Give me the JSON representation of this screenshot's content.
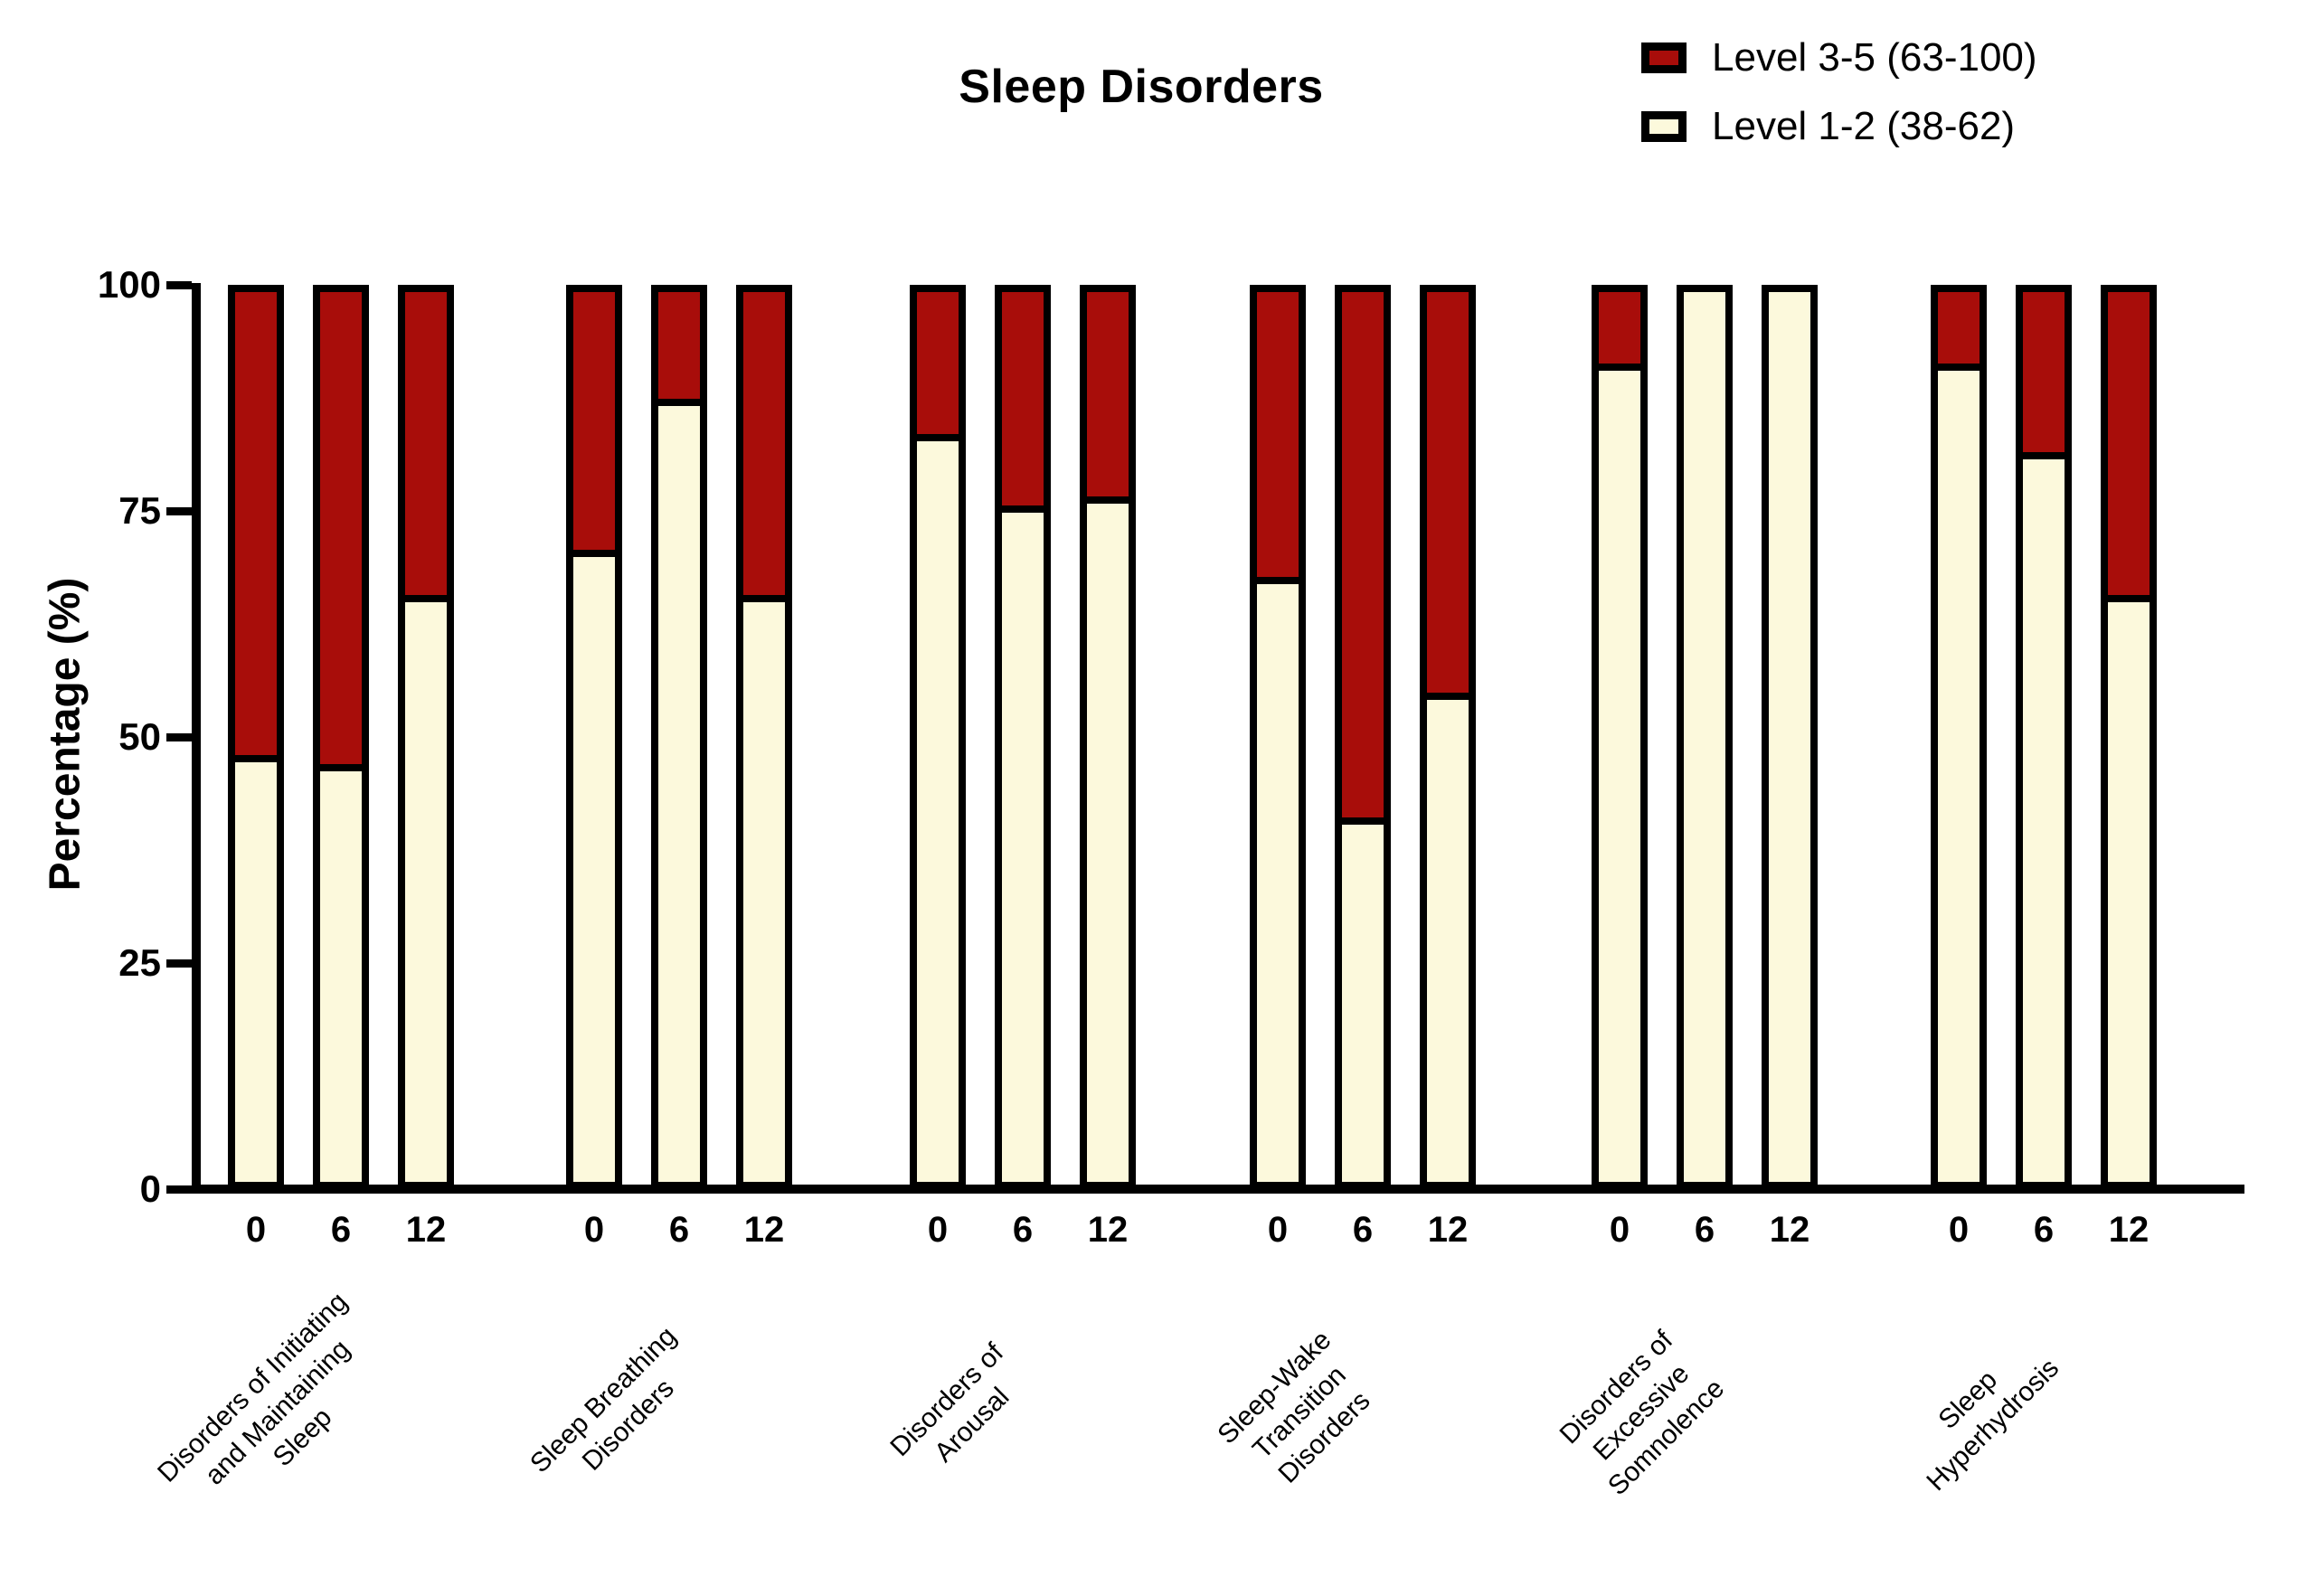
{
  "chart_data": {
    "type": "bar",
    "stacked": true,
    "title": "Sleep Disorders",
    "ylabel": "Percentage (%)",
    "ylim": [
      0,
      100
    ],
    "yticks": [
      0,
      25,
      50,
      75,
      100
    ],
    "grid": false,
    "legend_position": "top-right",
    "series_order_bottom_to_top": [
      "Level 1-2 (38-62)",
      "Level 3-5 (63-100)"
    ],
    "legend": [
      {
        "name": "Level 3-5 (63-100)",
        "color": "#A80D0A"
      },
      {
        "name": "Level 1-2 (38-62)",
        "color": "#FCF9DC"
      }
    ],
    "time_labels": [
      "0",
      "6",
      "12"
    ],
    "groups": [
      {
        "label": "Disorders of Initiating and Maintaining Sleep",
        "label_lines": [
          "Disorders of Initiating",
          "and Maintaining",
          "Sleep"
        ],
        "bars": [
          {
            "time": "0",
            "level_1_2": 48,
            "level_3_5": 52
          },
          {
            "time": "6",
            "level_1_2": 47,
            "level_3_5": 53
          },
          {
            "time": "12",
            "level_1_2": 66,
            "level_3_5": 34
          }
        ]
      },
      {
        "label": "Sleep Breathing Disorders",
        "label_lines": [
          "Sleep Breathing",
          "Disorders"
        ],
        "bars": [
          {
            "time": "0",
            "level_1_2": 71,
            "level_3_5": 29
          },
          {
            "time": "6",
            "level_1_2": 88,
            "level_3_5": 12
          },
          {
            "time": "12",
            "level_1_2": 66,
            "level_3_5": 34
          }
        ]
      },
      {
        "label": "Disorders of Arousal",
        "label_lines": [
          "Disorders of",
          "Arousal"
        ],
        "bars": [
          {
            "time": "0",
            "level_1_2": 84,
            "level_3_5": 16
          },
          {
            "time": "6",
            "level_1_2": 76,
            "level_3_5": 24
          },
          {
            "time": "12",
            "level_1_2": 77,
            "level_3_5": 23
          }
        ]
      },
      {
        "label": "Sleep-Wake Transition Disorders",
        "label_lines": [
          "Sleep-Wake",
          "Transition",
          "Disorders"
        ],
        "bars": [
          {
            "time": "0",
            "level_1_2": 68,
            "level_3_5": 32
          },
          {
            "time": "6",
            "level_1_2": 41,
            "level_3_5": 59
          },
          {
            "time": "12",
            "level_1_2": 55,
            "level_3_5": 45
          }
        ]
      },
      {
        "label": "Disorders of Excessive Somnolence",
        "label_lines": [
          "Disorders of",
          "Excessive",
          "Somnolence"
        ],
        "bars": [
          {
            "time": "0",
            "level_1_2": 92,
            "level_3_5": 8
          },
          {
            "time": "6",
            "level_1_2": 100,
            "level_3_5": 0
          },
          {
            "time": "12",
            "level_1_2": 100,
            "level_3_5": 0
          }
        ]
      },
      {
        "label": "Sleep Hyperhydrosis",
        "label_lines": [
          "Sleep",
          "Hyperhydrosis"
        ],
        "bars": [
          {
            "time": "0",
            "level_1_2": 92,
            "level_3_5": 8
          },
          {
            "time": "6",
            "level_1_2": 82,
            "level_3_5": 18
          },
          {
            "time": "12",
            "level_1_2": 66,
            "level_3_5": 34
          }
        ]
      }
    ],
    "colors": {
      "level_3_5": "#A80D0A",
      "level_1_2": "#FCF9DC",
      "axis": "#000000",
      "background": "#FFFFFF"
    }
  }
}
